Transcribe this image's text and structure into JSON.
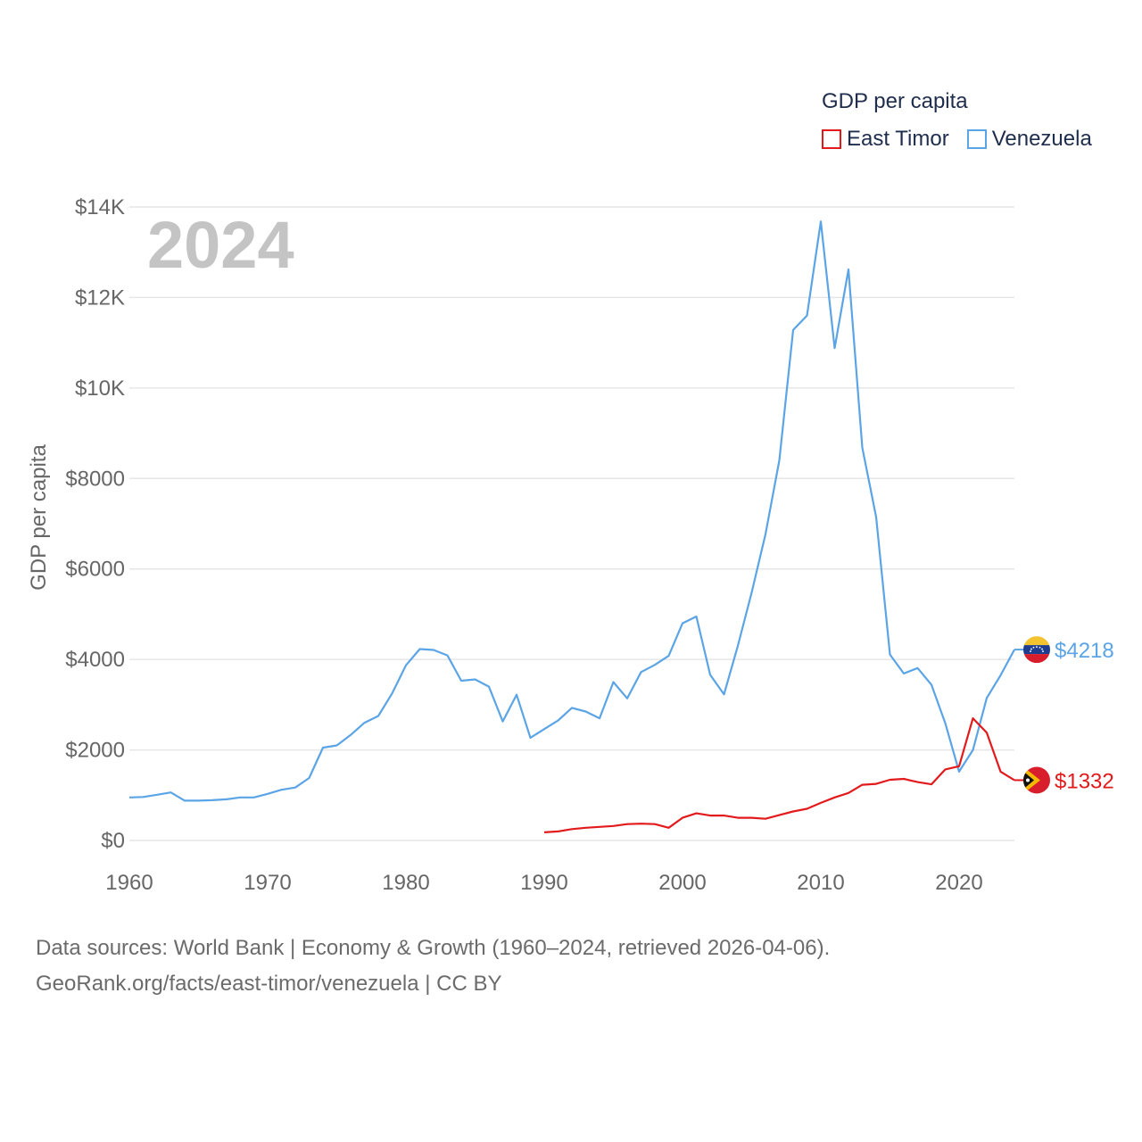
{
  "legend": {
    "title": "GDP per capita",
    "items": [
      {
        "label": "East Timor",
        "color": "#e31a1c"
      },
      {
        "label": "Venezuela",
        "color": "#5ba4e5"
      }
    ]
  },
  "year_label": "2024",
  "source": {
    "line1": "Data sources: World Bank | Economy & Growth (1960–2024, retrieved 2026-04-06).",
    "line2": "GeoRank.org/facts/east-timor/venezuela | CC BY"
  },
  "chart_data": {
    "type": "line",
    "title": "GDP per capita",
    "xlabel": "",
    "ylabel": "GDP per capita",
    "xlim": [
      1960,
      2024
    ],
    "ylim": [
      0,
      14000
    ],
    "x_ticks": [
      1960,
      1970,
      1980,
      1990,
      2000,
      2010,
      2020
    ],
    "x_tick_labels": [
      "1960",
      "1970",
      "1980",
      "1990",
      "2000",
      "2010",
      "2020"
    ],
    "y_ticks": [
      0,
      2000,
      4000,
      6000,
      8000,
      10000,
      12000,
      14000
    ],
    "y_tick_labels": [
      "$0",
      "$2000",
      "$4000",
      "$6000",
      "$8000",
      "$10K",
      "$12K",
      "$14K"
    ],
    "grid": true,
    "series": [
      {
        "name": "Venezuela",
        "color": "#5ba4e5",
        "end_label": "$4218",
        "flag": "venezuela-flag",
        "x": [
          1960,
          1961,
          1962,
          1963,
          1964,
          1965,
          1966,
          1967,
          1968,
          1969,
          1970,
          1971,
          1972,
          1973,
          1974,
          1975,
          1976,
          1977,
          1978,
          1979,
          1980,
          1981,
          1982,
          1983,
          1984,
          1985,
          1986,
          1987,
          1988,
          1989,
          1990,
          1991,
          1992,
          1993,
          1994,
          1995,
          1996,
          1997,
          1998,
          1999,
          2000,
          2001,
          2002,
          2003,
          2004,
          2005,
          2006,
          2007,
          2008,
          2009,
          2010,
          2011,
          2012,
          2013,
          2014,
          2015,
          2016,
          2017,
          2018,
          2019,
          2020,
          2021,
          2022,
          2023,
          2024
        ],
        "values": [
          950,
          960,
          1010,
          1060,
          880,
          880,
          890,
          910,
          950,
          950,
          1030,
          1120,
          1170,
          1380,
          2050,
          2100,
          2330,
          2600,
          2750,
          3250,
          3870,
          4230,
          4210,
          4090,
          3530,
          3560,
          3400,
          2630,
          3220,
          2270,
          2460,
          2650,
          2930,
          2850,
          2700,
          3500,
          3140,
          3720,
          3880,
          4080,
          4800,
          4950,
          3660,
          3230,
          4300,
          5480,
          6770,
          8400,
          11280,
          11600,
          13680,
          10880,
          12620,
          8680,
          7150,
          4110,
          3690,
          3810,
          3440,
          2590,
          1520,
          2000,
          3150,
          3650,
          4218
        ]
      },
      {
        "name": "East Timor",
        "color": "#e31a1c",
        "end_label": "$1332",
        "flag": "east-timor-flag",
        "x": [
          1990,
          1991,
          1992,
          1993,
          1994,
          1995,
          1996,
          1997,
          1998,
          1999,
          2000,
          2001,
          2002,
          2003,
          2004,
          2005,
          2006,
          2007,
          2008,
          2009,
          2010,
          2011,
          2012,
          2013,
          2014,
          2015,
          2016,
          2017,
          2018,
          2019,
          2020,
          2021,
          2022,
          2023,
          2024
        ],
        "values": [
          180,
          200,
          250,
          280,
          300,
          320,
          360,
          370,
          360,
          280,
          500,
          600,
          550,
          550,
          500,
          500,
          480,
          560,
          640,
          700,
          830,
          950,
          1050,
          1230,
          1250,
          1340,
          1360,
          1290,
          1240,
          1570,
          1640,
          2700,
          2380,
          1520,
          1332
        ]
      }
    ]
  }
}
